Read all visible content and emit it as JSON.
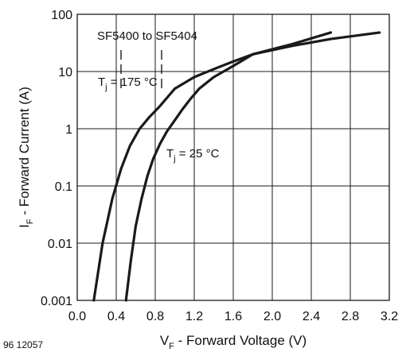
{
  "chart_data": {
    "type": "line",
    "title": "",
    "xlabel": "F - Forward Voltage (V)",
    "xlabel_prefix": "V",
    "ylabel": "F - Forward Current (A)",
    "ylabel_prefix": "I",
    "xlim": [
      0.0,
      3.2
    ],
    "ylim": [
      0.001,
      100
    ],
    "x_scale": "linear",
    "y_scale": "log",
    "x_ticks": [
      0.0,
      0.4,
      0.8,
      1.2,
      1.6,
      2.0,
      2.4,
      2.8,
      3.2
    ],
    "x_tick_labels": [
      "0.0",
      "0.4",
      "0.8",
      "1.2",
      "1.6",
      "2.0",
      "2.4",
      "2.8",
      "3.2"
    ],
    "y_ticks": [
      0.001,
      0.01,
      0.1,
      1,
      10,
      100
    ],
    "y_tick_labels": [
      "0.001",
      "0.01",
      "0.1",
      "1",
      "10",
      "100"
    ],
    "grid": true,
    "series": [
      {
        "name": "",
        "condition_prefix": "T",
        "condition_sub": "j",
        "condition_value": " = 175 °C",
        "x": [
          0.17,
          0.26,
          0.36,
          0.45,
          0.54,
          0.64,
          0.74,
          0.84,
          0.94,
          1.0,
          1.2,
          1.4,
          1.6,
          1.8,
          2.2,
          2.6
        ],
        "y": [
          0.001,
          0.01,
          0.06,
          0.2,
          0.5,
          1.0,
          1.6,
          2.4,
          3.8,
          5.0,
          8.0,
          11.0,
          15.0,
          20.0,
          30.0,
          48.0
        ]
      },
      {
        "name": "",
        "condition_prefix": "T",
        "condition_sub": "j",
        "condition_value": " = 25 °C",
        "x": [
          0.5,
          0.55,
          0.6,
          0.66,
          0.72,
          0.78,
          0.85,
          0.92,
          1.0,
          1.08,
          1.16,
          1.25,
          1.4,
          1.6,
          1.8,
          2.2,
          2.6,
          3.1
        ],
        "y": [
          0.001,
          0.005,
          0.02,
          0.06,
          0.15,
          0.3,
          0.55,
          0.9,
          1.4,
          2.2,
          3.3,
          5.0,
          8.0,
          12.5,
          20.0,
          28.0,
          37.0,
          48.0
        ]
      }
    ],
    "annotations": [
      {
        "text": "SF5400 to SF5404"
      }
    ],
    "figure_id": "96 12057",
    "colors": {
      "curve": "#1a1a1a",
      "grid": "#1a1a1a",
      "axis": "#1a1a1a"
    }
  }
}
